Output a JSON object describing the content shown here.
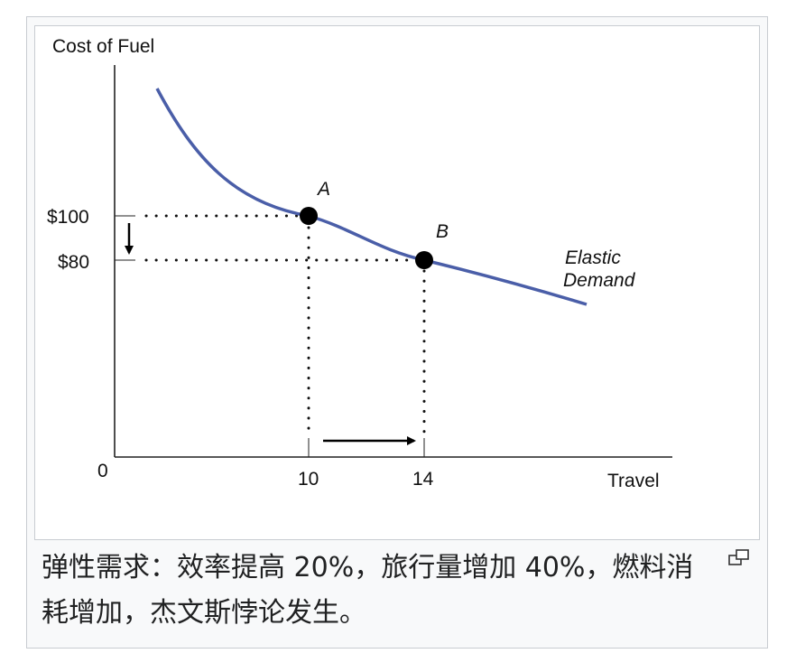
{
  "caption": "弹性需求：效率提高 20%，旅行量增加 40%，燃料消耗增加，杰文斯悖论发生。",
  "icons": {
    "magnify": "magnify-clip-icon"
  },
  "colors": {
    "curve": "#4a5ea8",
    "axis": "#222222",
    "marker": "#000000"
  },
  "chart_data": {
    "type": "line",
    "title": "",
    "xlabel": "Travel",
    "ylabel": "Cost of Fuel",
    "origin_label": "0",
    "x_ticks": [
      {
        "value": 10,
        "label": "10"
      },
      {
        "value": 14,
        "label": "14"
      }
    ],
    "y_ticks": [
      {
        "value": 100,
        "label": "$100"
      },
      {
        "value": 80,
        "label": "$80"
      }
    ],
    "points": [
      {
        "name": "A",
        "x": 10,
        "y": 100
      },
      {
        "name": "B",
        "x": 14,
        "y": 80
      }
    ],
    "series": [
      {
        "name": "Elastic Demand",
        "label_lines": [
          "Elastic",
          "Demand"
        ]
      }
    ],
    "grid": false
  }
}
